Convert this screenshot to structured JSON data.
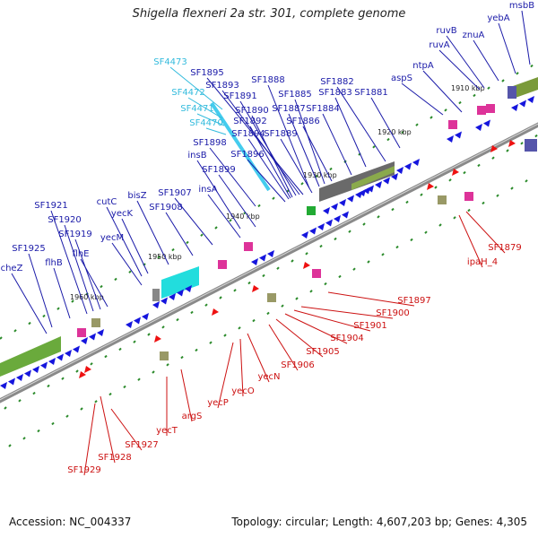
{
  "title": "Shigella flexneri 2a str. 301, complete genome",
  "footer": {
    "accession": "Accession: NC_004337",
    "summary": "Topology: circular; Length: 4,607,203 bp; Genes: 4,305"
  },
  "colors": {
    "forward_label": "#1a1aa8",
    "reverse_label": "#cc1111",
    "hypothetical_label": "#33bbdd",
    "backbone": "#888888",
    "tick": "#2a8a2a"
  },
  "ruler": {
    "unit": "kbp",
    "ticks": [
      "1960 kbp",
      "1950 kbp",
      "1940 kbp",
      "1930 kbp",
      "1920 kbp",
      "1910 kbp"
    ]
  },
  "forward_genes": [
    "cheZ",
    "SF1925",
    "flhB",
    "SF1921",
    "SF1920",
    "SF1919",
    "flhE",
    "yecM",
    "cutC",
    "yecK",
    "bisZ",
    "SF1908",
    "SF1907",
    "insA",
    "SF1899",
    "SF1898",
    "insB",
    "SF1896",
    "SF1894",
    "SF1889",
    "SF1892",
    "SF1890",
    "SF1891",
    "SF1893",
    "SF1895",
    "SF1888",
    "SF1887",
    "SF1885",
    "SF1886",
    "SF1884",
    "SF1883",
    "SF1882",
    "SF1881",
    "aspS",
    "ntpA",
    "ruvA",
    "ruvB",
    "znuA",
    "yebA",
    "msbB"
  ],
  "hypothetical_genes": [
    "SF4473",
    "SF4472",
    "SF4471",
    "SF4470"
  ],
  "reverse_genes": [
    "SF1929",
    "SF1928",
    "SF1927",
    "yecT",
    "argS",
    "yecP",
    "yecO",
    "yecN",
    "SF1906",
    "SF1905",
    "SF1904",
    "SF1901",
    "SF1900",
    "SF1897",
    "ipaH_4",
    "SF1879"
  ]
}
